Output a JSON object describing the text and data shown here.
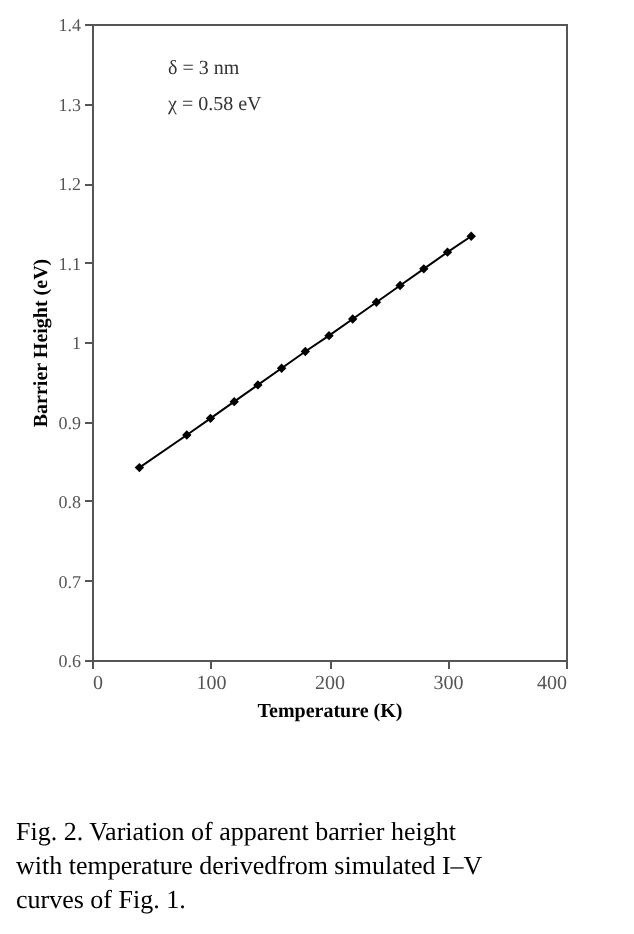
{
  "chart_data": {
    "type": "line",
    "xlabel": "Temperature (K)",
    "ylabel": "Barrier Height (eV)",
    "x": [
      40,
      80,
      100,
      120,
      140,
      160,
      180,
      200,
      220,
      240,
      260,
      280,
      300,
      320
    ],
    "series": [
      {
        "color": "#000000",
        "values": [
          0.842,
          0.883,
          0.904,
          0.925,
          0.946,
          0.967,
          0.988,
          1.008,
          1.029,
          1.05,
          1.071,
          1.092,
          1.113,
          1.133
        ]
      }
    ],
    "xlim": [
      0,
      400
    ],
    "xticks": [
      0,
      100,
      200,
      300,
      400
    ],
    "ylim": [
      0.6,
      1.4
    ],
    "yticks": [
      0.6,
      0.7,
      0.8,
      0.9,
      1,
      1.1,
      1.2,
      1.3,
      1.4
    ],
    "grid": false,
    "marker": "diamond",
    "line_style": "solid",
    "annotations": [
      "δ = 3 nm",
      "χ = 0.58 eV",
      "Fig. 2. Variation of apparent barrier height with temperature derivedfrom simulated I–V curves of Fig. 1."
    ]
  }
}
